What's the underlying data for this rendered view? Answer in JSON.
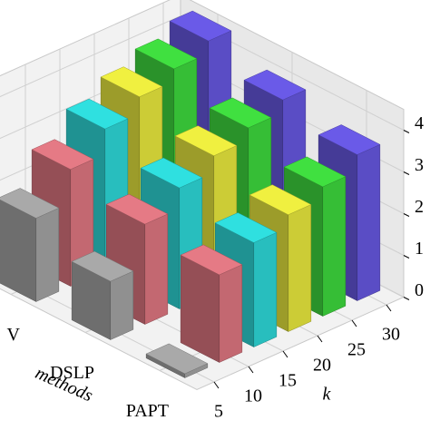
{
  "chart_data": {
    "type": "bar3d",
    "categories": [
      "V",
      "DSLP",
      "PAPT"
    ],
    "kvalues": [
      5,
      10,
      15,
      20,
      25,
      30
    ],
    "colors": [
      "#a9a9a9",
      "#e57a85",
      "#2fe0e0",
      "#f0f040",
      "#40e040",
      "#6a5ae8"
    ],
    "values": [
      [
        2.0,
        2.8,
        3.4,
        3.8,
        4.1,
        4.4
      ],
      [
        1.4,
        2.4,
        2.9,
        3.3,
        3.6,
        3.9
      ],
      [
        0.1,
        2.1,
        2.5,
        2.8,
        3.1,
        3.5
      ]
    ],
    "xlabel": "methods",
    "ylabel": "k",
    "zlim": [
      0,
      4.5
    ],
    "zticks": [
      0,
      1,
      2,
      3,
      4
    ],
    "grid": true
  }
}
